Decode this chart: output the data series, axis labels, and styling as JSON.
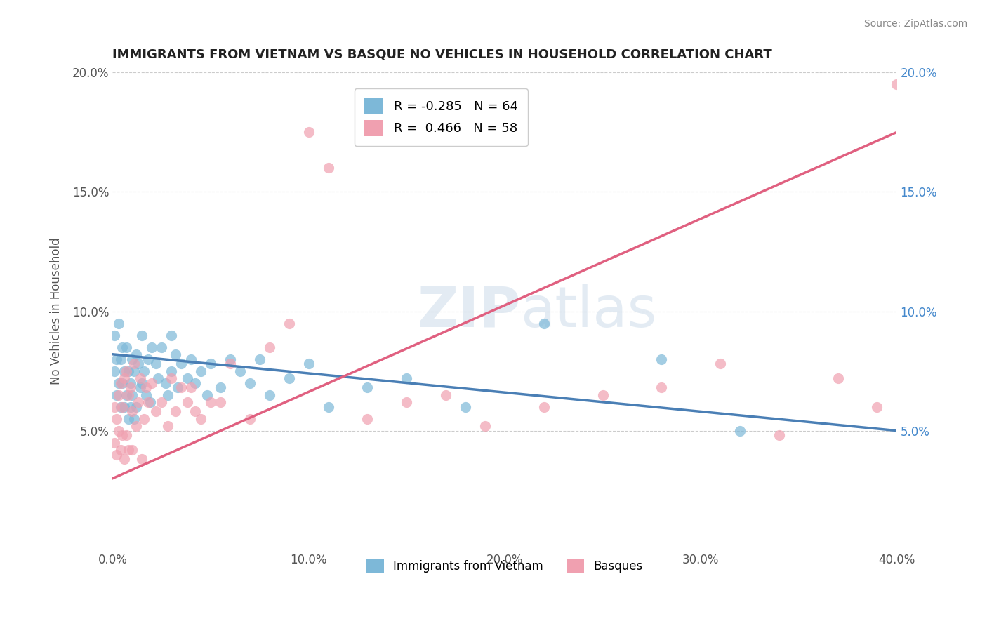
{
  "title": "IMMIGRANTS FROM VIETNAM VS BASQUE NO VEHICLES IN HOUSEHOLD CORRELATION CHART",
  "source": "Source: ZipAtlas.com",
  "ylabel": "No Vehicles in Household",
  "xlim": [
    0.0,
    0.4
  ],
  "ylim": [
    0.0,
    0.2
  ],
  "xticks": [
    0.0,
    0.1,
    0.2,
    0.3,
    0.4
  ],
  "yticks": [
    0.0,
    0.05,
    0.1,
    0.15,
    0.2
  ],
  "xticklabels": [
    "0.0%",
    "10.0%",
    "20.0%",
    "30.0%",
    "40.0%"
  ],
  "yticklabels_left": [
    "",
    "5.0%",
    "10.0%",
    "15.0%",
    "20.0%"
  ],
  "yticklabels_right": [
    "",
    "5.0%",
    "10.0%",
    "15.0%",
    "20.0%"
  ],
  "watermark_zip": "ZIP",
  "watermark_atlas": "atlas",
  "legend_blue_r": "-0.285",
  "legend_blue_n": "64",
  "legend_pink_r": "0.466",
  "legend_pink_n": "58",
  "color_blue": "#7db8d8",
  "color_pink": "#f0a0b0",
  "line_blue": "#4a7fb5",
  "line_pink": "#e06080",
  "blue_line_x0": 0.0,
  "blue_line_y0": 0.082,
  "blue_line_x1": 0.4,
  "blue_line_y1": 0.05,
  "pink_line_x0": 0.0,
  "pink_line_y0": 0.03,
  "pink_line_x1": 0.4,
  "pink_line_y1": 0.175,
  "blue_points_x": [
    0.001,
    0.001,
    0.002,
    0.002,
    0.003,
    0.003,
    0.004,
    0.004,
    0.005,
    0.005,
    0.006,
    0.006,
    0.007,
    0.007,
    0.008,
    0.008,
    0.009,
    0.009,
    0.01,
    0.01,
    0.011,
    0.011,
    0.012,
    0.012,
    0.013,
    0.014,
    0.015,
    0.015,
    0.016,
    0.017,
    0.018,
    0.019,
    0.02,
    0.022,
    0.023,
    0.025,
    0.027,
    0.028,
    0.03,
    0.03,
    0.032,
    0.033,
    0.035,
    0.038,
    0.04,
    0.042,
    0.045,
    0.048,
    0.05,
    0.055,
    0.06,
    0.065,
    0.07,
    0.075,
    0.08,
    0.09,
    0.1,
    0.11,
    0.13,
    0.15,
    0.18,
    0.22,
    0.28,
    0.32
  ],
  "blue_points_y": [
    0.09,
    0.075,
    0.08,
    0.065,
    0.095,
    0.07,
    0.08,
    0.06,
    0.085,
    0.07,
    0.075,
    0.06,
    0.085,
    0.065,
    0.075,
    0.055,
    0.07,
    0.06,
    0.08,
    0.065,
    0.075,
    0.055,
    0.082,
    0.06,
    0.078,
    0.068,
    0.09,
    0.07,
    0.075,
    0.065,
    0.08,
    0.062,
    0.085,
    0.078,
    0.072,
    0.085,
    0.07,
    0.065,
    0.09,
    0.075,
    0.082,
    0.068,
    0.078,
    0.072,
    0.08,
    0.07,
    0.075,
    0.065,
    0.078,
    0.068,
    0.08,
    0.075,
    0.07,
    0.08,
    0.065,
    0.072,
    0.078,
    0.06,
    0.068,
    0.072,
    0.06,
    0.095,
    0.08,
    0.05
  ],
  "pink_points_x": [
    0.001,
    0.001,
    0.002,
    0.002,
    0.003,
    0.003,
    0.004,
    0.004,
    0.005,
    0.005,
    0.006,
    0.006,
    0.007,
    0.007,
    0.008,
    0.008,
    0.009,
    0.01,
    0.01,
    0.011,
    0.012,
    0.013,
    0.014,
    0.015,
    0.016,
    0.017,
    0.018,
    0.02,
    0.022,
    0.025,
    0.028,
    0.03,
    0.032,
    0.035,
    0.038,
    0.04,
    0.042,
    0.045,
    0.05,
    0.055,
    0.06,
    0.07,
    0.08,
    0.09,
    0.1,
    0.11,
    0.13,
    0.15,
    0.17,
    0.19,
    0.22,
    0.25,
    0.28,
    0.31,
    0.34,
    0.37,
    0.39,
    0.4
  ],
  "pink_points_y": [
    0.06,
    0.045,
    0.055,
    0.04,
    0.065,
    0.05,
    0.07,
    0.042,
    0.06,
    0.048,
    0.072,
    0.038,
    0.075,
    0.048,
    0.065,
    0.042,
    0.068,
    0.058,
    0.042,
    0.078,
    0.052,
    0.062,
    0.072,
    0.038,
    0.055,
    0.068,
    0.062,
    0.07,
    0.058,
    0.062,
    0.052,
    0.072,
    0.058,
    0.068,
    0.062,
    0.068,
    0.058,
    0.055,
    0.062,
    0.062,
    0.078,
    0.055,
    0.085,
    0.095,
    0.175,
    0.16,
    0.055,
    0.062,
    0.065,
    0.052,
    0.06,
    0.065,
    0.068,
    0.078,
    0.048,
    0.072,
    0.06,
    0.195
  ]
}
